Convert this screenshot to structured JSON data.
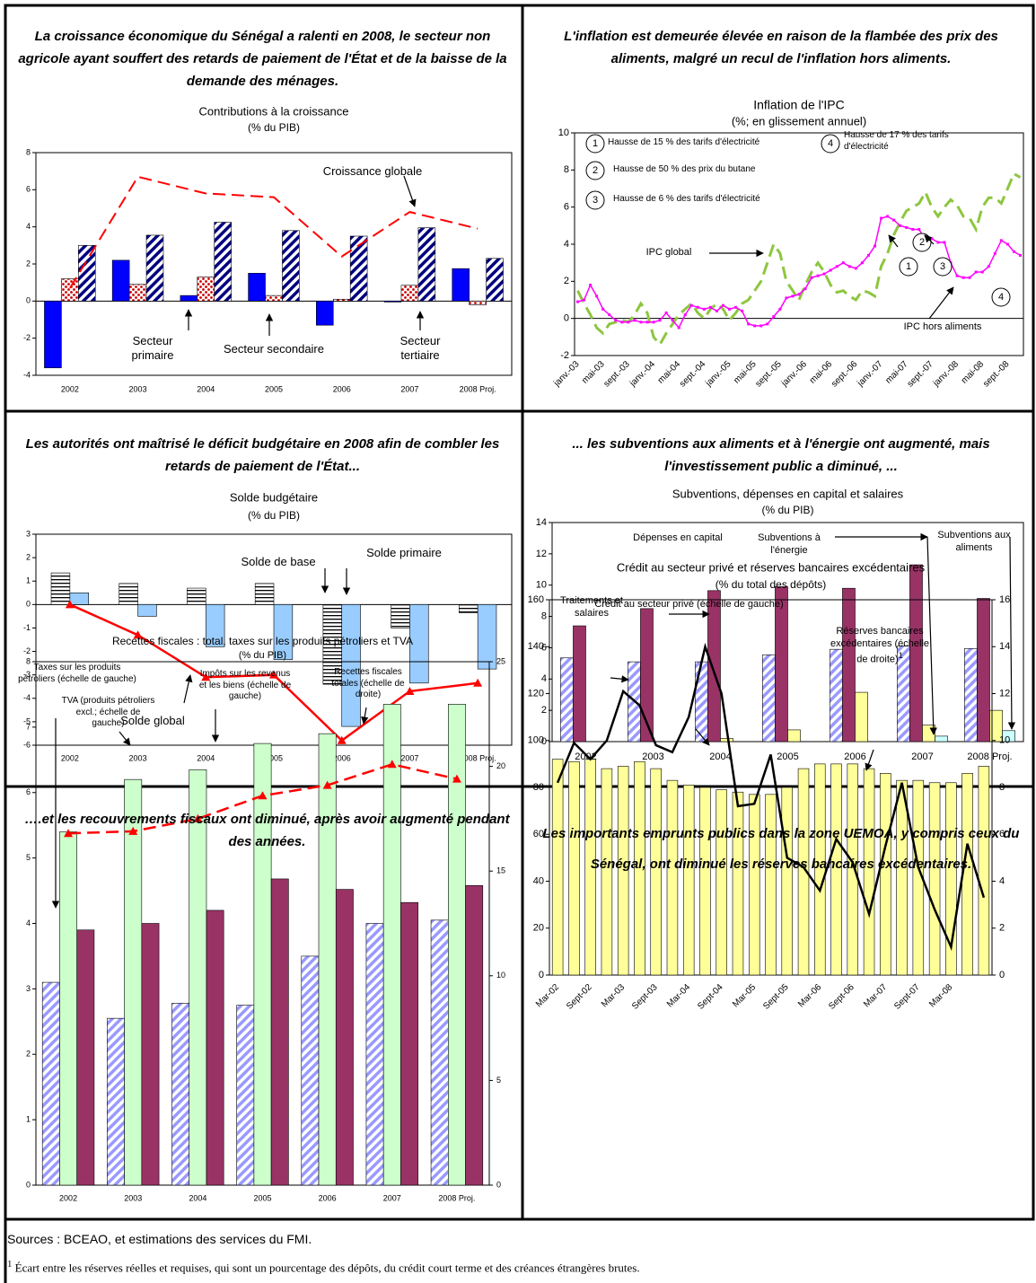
{
  "chart_data": [
    {
      "type": "bar",
      "heading": "La croissance économique du Sénégal a ralenti en 2008, le secteur non agricole ayant souffert des retards de paiement de l'État et de la baisse de la demande des ménages.",
      "title": "Contributions à la croissance",
      "subtitle": "(% du PIB)",
      "categories": [
        "2002",
        "2003",
        "2004",
        "2005",
        "2006",
        "2007",
        "2008 Proj."
      ],
      "ylim": [
        -4,
        8
      ],
      "yticks": [
        -4,
        -2,
        0,
        2,
        4,
        6,
        8
      ],
      "series": [
        {
          "name": "Secteur primaire",
          "type": "bar",
          "color": "#0000ff",
          "pattern": "solid",
          "values": [
            -3.6,
            2.2,
            0.3,
            1.5,
            -1.3,
            -0.05,
            1.75
          ]
        },
        {
          "name": "Secteur secondaire",
          "type": "bar",
          "color": "#cc0000",
          "pattern": "dots",
          "values": [
            1.2,
            0.9,
            1.3,
            0.3,
            0.1,
            0.85,
            -0.2
          ]
        },
        {
          "name": "Secteur tertiaire",
          "type": "bar",
          "color": "#000080",
          "pattern": "diagonal",
          "values": [
            3.0,
            3.55,
            4.25,
            3.8,
            3.5,
            3.95,
            2.3
          ]
        },
        {
          "name": "Croissance globale",
          "type": "line",
          "color": "#ff0000",
          "dash": true,
          "values": [
            0.7,
            6.7,
            5.8,
            5.6,
            2.4,
            4.8,
            3.9
          ]
        }
      ]
    },
    {
      "type": "line",
      "heading": "L'inflation est demeurée élevée en raison de la flambée des prix des aliments, malgré un recul de l'inflation hors aliments.",
      "title": "Inflation de l'IPC",
      "subtitle": "(%; en glissement annuel)",
      "categories": [
        "janv.-03",
        null,
        null,
        null,
        "mai-03",
        null,
        null,
        null,
        "sept.-03",
        null,
        null,
        null,
        "janv.-04",
        null,
        null,
        null,
        "mai-04",
        null,
        null,
        null,
        "sept.-04",
        null,
        null,
        null,
        "janv.-05",
        null,
        null,
        null,
        "mai-05",
        null,
        null,
        null,
        "sept.-05",
        null,
        null,
        null,
        "janv.-06",
        null,
        null,
        null,
        "mai-06",
        null,
        null,
        null,
        "sept.-06",
        null,
        null,
        null,
        "janv.-07",
        null,
        null,
        null,
        "mai-07",
        null,
        null,
        null,
        "sept.-07",
        null,
        null,
        null,
        "janv.-08",
        null,
        null,
        null,
        "mai-08",
        null,
        null,
        null,
        "sept.-08",
        null,
        null
      ],
      "ylim": [
        -2,
        10
      ],
      "yticks": [
        -2,
        0,
        2,
        4,
        6,
        8,
        10
      ],
      "series": [
        {
          "name": "IPC global",
          "type": "line",
          "color": "#8dc63f",
          "dash": true,
          "width": 3,
          "values": [
            1.5,
            0.8,
            0.2,
            -0.5,
            -0.8,
            -0.3,
            -0.2,
            -0.1,
            -0.2,
            0.2,
            0.8,
            0.3,
            -1.0,
            -1.4,
            -0.8,
            -0.3,
            0.2,
            0.5,
            0.8,
            0.3,
            0.0,
            0.5,
            0.8,
            0.5,
            -0.1,
            0.3,
            0.8,
            1.0,
            1.5,
            2.0,
            3.0,
            4.0,
            3.5,
            2.0,
            1.5,
            1.0,
            1.8,
            2.5,
            3.0,
            2.5,
            1.8,
            1.4,
            1.5,
            1.2,
            1.0,
            1.5,
            1.4,
            1.2,
            2.8,
            3.5,
            4.5,
            5.2,
            5.8,
            6.0,
            6.2,
            6.8,
            6.0,
            5.5,
            6.0,
            6.4,
            6.1,
            5.5,
            5.4,
            4.8,
            6.0,
            6.5,
            6.5,
            6.2,
            7.0,
            7.8,
            7.6
          ]
        },
        {
          "name": "IPC hors aliments",
          "type": "line",
          "color": "#ff00ff",
          "marker": "square",
          "width": 1.5,
          "values": [
            0.9,
            1.0,
            1.8,
            1.2,
            0.5,
            0.2,
            -0.1,
            -0.2,
            -0.2,
            -0.1,
            -0.2,
            -0.2,
            -0.2,
            -0.1,
            0.3,
            -0.1,
            -0.5,
            0.2,
            0.7,
            0.6,
            0.5,
            0.6,
            0.4,
            0.7,
            0.5,
            0.6,
            0.4,
            -0.3,
            -0.4,
            -0.4,
            -0.3,
            0.1,
            0.5,
            1.1,
            1.2,
            1.3,
            1.6,
            2.2,
            2.3,
            2.4,
            2.6,
            2.8,
            3.0,
            2.8,
            2.7,
            3.0,
            3.4,
            3.9,
            5.4,
            5.5,
            5.3,
            5.0,
            4.9,
            4.8,
            4.8,
            4.2,
            4.3,
            4.1,
            4.1,
            3.0,
            2.3,
            2.2,
            2.2,
            2.5,
            2.5,
            2.8,
            3.5,
            4.2,
            4.0,
            3.6,
            3.4
          ]
        }
      ],
      "annotations": [
        {
          "number": "1",
          "text": "Hausse de 15 % des tarifs d'électricité"
        },
        {
          "number": "2",
          "text": "Hausse de 50 % des prix du butane"
        },
        {
          "number": "3",
          "text": "Hausse de 6 % des tarifs d'électricité"
        },
        {
          "number": "4",
          "text": "Hausse de 17 % des tarifs d'électricité"
        }
      ]
    },
    {
      "type": "bar",
      "heading": "Les autorités ont maîtrisé le déficit budgétaire en 2008 afin de combler les retards de paiement de l'État...",
      "title": "Solde budgétaire",
      "subtitle": "(% du PIB)",
      "categories": [
        "2002",
        "2003",
        "2004",
        "2005",
        "2006",
        "2007",
        "2008 Proj."
      ],
      "ylim": [
        -6,
        3
      ],
      "yticks": [
        -6,
        -5,
        -4,
        -3,
        -2,
        -1,
        0,
        1,
        2,
        3
      ],
      "series": [
        {
          "name": "Solde de base",
          "type": "bar",
          "color": "#000000",
          "pattern": "horizontal",
          "values": [
            1.35,
            0.9,
            0.7,
            0.9,
            -3.4,
            -1.0,
            -0.35
          ]
        },
        {
          "name": "Solde primaire",
          "type": "bar",
          "color": "#99ccff",
          "pattern": "solid",
          "values": [
            0.5,
            -0.5,
            -1.8,
            -2.35,
            -5.2,
            -3.35,
            -2.75
          ]
        },
        {
          "name": "Solde global",
          "type": "line",
          "color": "#ff0000",
          "marker": "triangle",
          "width": 2.5,
          "values": [
            0.0,
            -1.3,
            -3.1,
            -3.0,
            -5.8,
            -3.7,
            -3.35
          ]
        }
      ]
    },
    {
      "type": "bar",
      "heading": "... les subventions aux aliments et à l'énergie ont augmenté, mais l'investissement public a diminué, ...",
      "title": "Subventions, dépenses en capital et salaires",
      "subtitle": "(% du PIB)",
      "categories": [
        "2002",
        "2003",
        "2004",
        "2005",
        "2006",
        "2007",
        "2008 Proj."
      ],
      "ylim": [
        0,
        14
      ],
      "yticks": [
        0,
        2,
        4,
        6,
        8,
        10,
        12,
        14
      ],
      "series": [
        {
          "name": "Traitements et salaires",
          "type": "bar",
          "color": "#9999ff",
          "pattern": "diagonal",
          "values": [
            5.35,
            5.1,
            5.1,
            5.55,
            5.9,
            6.1,
            5.95
          ]
        },
        {
          "name": "Dépenses en capital",
          "type": "bar",
          "color": "#993366",
          "pattern": "solid",
          "values": [
            7.4,
            8.5,
            9.65,
            9.9,
            9.8,
            11.3,
            9.15
          ]
        },
        {
          "name": "Subventions à l'énergie",
          "type": "bar",
          "color": "#ffff99",
          "pattern": "solid",
          "values": [
            null,
            null,
            0.2,
            0.75,
            3.15,
            1.05,
            2.0
          ]
        },
        {
          "name": "Subventions aux aliments",
          "type": "bar",
          "color": "#ccffff",
          "pattern": "solid",
          "values": [
            null,
            null,
            null,
            null,
            null,
            0.35,
            0.7
          ]
        }
      ]
    },
    {
      "type": "bar",
      "heading": "….et les recouvrements fiscaux ont diminué, après avoir augmenté pendant des années.",
      "title": "Recettes fiscales : total, taxes sur les produits pétroliers et TVA",
      "subtitle": "(% du PIB)",
      "categories": [
        "2002",
        "2003",
        "2004",
        "2005",
        "2006",
        "2007",
        "2008 Proj."
      ],
      "ylim": [
        0,
        8
      ],
      "yticks": [
        0,
        1,
        2,
        3,
        4,
        5,
        6,
        7,
        8
      ],
      "y2lim": [
        0,
        25
      ],
      "y2ticks": [
        0,
        5,
        10,
        15,
        20,
        25
      ],
      "series": [
        {
          "name": "Taxes sur les produits pétroliers (échelle de gauche)",
          "type": "bar",
          "color": "#9999ff",
          "pattern": "diagonal",
          "values": [
            3.1,
            2.55,
            2.78,
            2.75,
            3.5,
            4.0,
            4.05
          ]
        },
        {
          "name": "TVA (produits pétroliers excl.; échelle de gauche)",
          "type": "bar",
          "color": "#ccffcc",
          "pattern": "solid",
          "values": [
            5.4,
            6.2,
            6.35,
            6.75,
            6.9,
            7.35,
            7.35
          ]
        },
        {
          "name": "Impôts sur les revenus et les biens (échelle de gauche)",
          "type": "bar",
          "color": "#993366",
          "pattern": "solid",
          "values": [
            3.9,
            4.0,
            4.2,
            4.68,
            4.52,
            4.32,
            4.58
          ]
        },
        {
          "name": "Recettes fiscales totales (échelle de droite)",
          "type": "line",
          "axis": "y2",
          "color": "#ff0000",
          "dash": true,
          "marker": "triangle",
          "width": 2.5,
          "values": [
            16.8,
            16.9,
            17.5,
            18.6,
            19.1,
            20.1,
            19.4
          ]
        }
      ]
    },
    {
      "type": "bar",
      "heading": "Les importants emprunts publics dans la zone UEMOA, y compris ceux du Sénégal, ont diminué les réserves bancaires excédentaires.",
      "title": "Crédit au secteur privé et réserves bancaires excédentaires",
      "subtitle": "(% du total des dépôts)",
      "categories": [
        "Mar-02",
        null,
        "Sept-02",
        null,
        "Mar-03",
        null,
        "Sept-03",
        null,
        "Mar-04",
        null,
        "Sept-04",
        null,
        "Mar-05",
        null,
        "Sept-05",
        null,
        "Mar-06",
        null,
        "Sept-06",
        null,
        "Mar-07",
        null,
        "Sept-07",
        null,
        "Mar-08",
        null,
        null
      ],
      "ylim": [
        0,
        160
      ],
      "yticks": [
        0,
        20,
        40,
        60,
        80,
        100,
        120,
        140,
        160
      ],
      "y2lim": [
        0,
        16
      ],
      "y2ticks": [
        0,
        2,
        4,
        6,
        8,
        10,
        12,
        14,
        16
      ],
      "series": [
        {
          "name": "Crédit au secteur privé (échelle de gauche)",
          "type": "bar",
          "color": "#ffff99",
          "pattern": "solid",
          "values": [
            92,
            91,
            92,
            88,
            89,
            91,
            88,
            83,
            81,
            80,
            79,
            78,
            77,
            77,
            80,
            88,
            90,
            90,
            90,
            88,
            86,
            83,
            83,
            82,
            82,
            86,
            89
          ]
        },
        {
          "name": "Réserves bancaires excédentaires (échelle de droite)",
          "name_note": "1",
          "type": "line",
          "axis": "y2",
          "color": "#000000",
          "width": 2.5,
          "values": [
            8.2,
            9.9,
            9.2,
            10.0,
            12.1,
            11.5,
            9.8,
            9.5,
            11.0,
            14.0,
            12.0,
            7.2,
            7.3,
            9.4,
            5.0,
            4.6,
            3.6,
            5.8,
            4.8,
            2.6,
            5.5,
            8.2,
            4.6,
            2.8,
            1.2,
            5.6,
            3.3
          ]
        }
      ]
    }
  ],
  "sources": "Sources : BCEAO, et estimations des services du FMI.",
  "footnote": {
    "marker": "1",
    "text": "Écart entre les réserves réelles et requises, qui sont un pourcentage des dépôts, du crédit court terme et des créances étrangères brutes."
  }
}
